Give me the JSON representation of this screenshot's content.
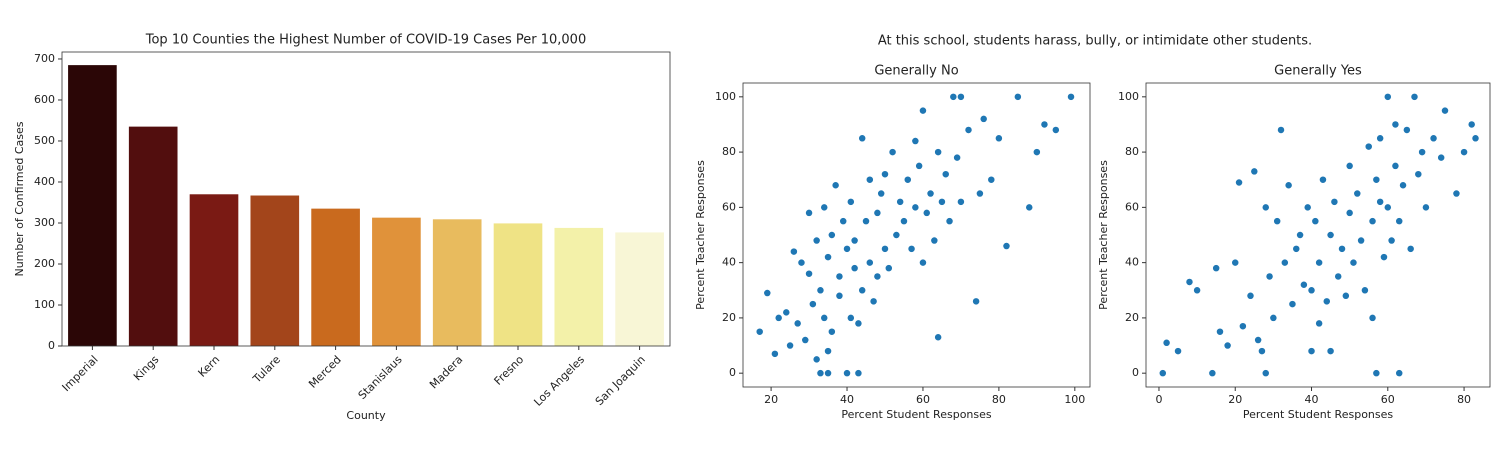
{
  "title": "At this school, students harass, bully, or intimidate other students.",
  "chart_data": [
    {
      "type": "bar",
      "title": "Top 10 Counties the Highest Number of COVID-19 Cases Per 10,000",
      "x_label": "County",
      "y_label": "Number of Confirmed Cases",
      "categories": [
        "Imperial",
        "Kings",
        "Kern",
        "Tulare",
        "Merced",
        "Stanislaus",
        "Madera",
        "Fresno",
        "Los Angeles",
        "San Joaquin"
      ],
      "values": [
        685,
        535,
        370,
        367,
        335,
        313,
        309,
        299,
        288,
        277
      ],
      "colors": [
        "#2b0606",
        "#520e0e",
        "#7a1a14",
        "#a3451b",
        "#c96a1e",
        "#e0923a",
        "#e8bb5e",
        "#efe385",
        "#f3f1a9",
        "#f8f6d6"
      ],
      "ylim": [
        0,
        717
      ],
      "yticks": [
        0,
        100,
        200,
        300,
        400,
        500,
        600,
        700
      ]
    },
    {
      "type": "scatter",
      "title": "Generally No",
      "x_label": "Percent Student Responses",
      "y_label": "Percent Teacher Responses",
      "color": "#1f77b4",
      "x": [
        17,
        19,
        21,
        22,
        24,
        25,
        26,
        27,
        28,
        29,
        30,
        30,
        31,
        32,
        32,
        33,
        33,
        34,
        34,
        35,
        35,
        36,
        36,
        37,
        38,
        38,
        39,
        40,
        40,
        41,
        41,
        42,
        42,
        43,
        44,
        44,
        45,
        46,
        46,
        47,
        48,
        48,
        49,
        50,
        50,
        51,
        52,
        53,
        54,
        55,
        56,
        57,
        58,
        58,
        59,
        60,
        60,
        61,
        62,
        63,
        64,
        65,
        66,
        67,
        68,
        69,
        70,
        72,
        74,
        75,
        76,
        78,
        80,
        82,
        85,
        88,
        90,
        92,
        95,
        99,
        33,
        35,
        43,
        64,
        70
      ],
      "values": [
        15,
        29,
        7,
        20,
        22,
        10,
        44,
        18,
        40,
        12,
        36,
        58,
        25,
        5,
        48,
        0,
        30,
        20,
        60,
        8,
        42,
        15,
        50,
        68,
        28,
        35,
        55,
        0,
        45,
        62,
        20,
        38,
        48,
        18,
        85,
        30,
        55,
        70,
        40,
        26,
        35,
        58,
        65,
        45,
        72,
        38,
        80,
        50,
        62,
        55,
        70,
        45,
        84,
        60,
        75,
        40,
        95,
        58,
        65,
        48,
        80,
        62,
        72,
        55,
        100,
        78,
        62,
        88,
        26,
        65,
        92,
        70,
        85,
        46,
        100,
        60,
        80,
        90,
        88,
        100,
        0,
        0,
        0,
        13,
        100
      ],
      "xlim": [
        12.6,
        104
      ],
      "ylim": [
        -5,
        105
      ],
      "xticks": [
        20,
        40,
        60,
        80,
        100
      ],
      "yticks": [
        0,
        20,
        40,
        60,
        80,
        100
      ]
    },
    {
      "type": "scatter",
      "title": "Generally Yes",
      "x_label": "Percent Student Responses",
      "y_label": "Percent Teacher Responses",
      "color": "#1f77b4",
      "x": [
        1,
        2,
        5,
        8,
        10,
        14,
        15,
        16,
        18,
        20,
        21,
        22,
        24,
        25,
        26,
        27,
        28,
        28,
        29,
        30,
        31,
        32,
        33,
        34,
        35,
        36,
        37,
        38,
        39,
        40,
        40,
        41,
        42,
        42,
        43,
        44,
        45,
        46,
        47,
        48,
        49,
        50,
        50,
        51,
        52,
        53,
        54,
        55,
        56,
        56,
        57,
        58,
        58,
        59,
        60,
        60,
        61,
        62,
        62,
        63,
        64,
        65,
        66,
        67,
        68,
        69,
        70,
        72,
        74,
        75,
        78,
        80,
        82,
        83,
        45,
        57,
        63
      ],
      "values": [
        0,
        11,
        8,
        33,
        30,
        0,
        38,
        15,
        10,
        40,
        69,
        17,
        28,
        73,
        12,
        8,
        0,
        60,
        35,
        20,
        55,
        88,
        40,
        68,
        25,
        45,
        50,
        32,
        60,
        8,
        30,
        55,
        18,
        40,
        70,
        26,
        50,
        62,
        35,
        45,
        28,
        58,
        75,
        40,
        65,
        48,
        30,
        82,
        55,
        20,
        70,
        62,
        85,
        42,
        100,
        60,
        48,
        75,
        90,
        55,
        68,
        88,
        45,
        100,
        72,
        80,
        60,
        85,
        78,
        95,
        65,
        80,
        90,
        85,
        8,
        0,
        0
      ],
      "xlim": [
        -3.4,
        86.8
      ],
      "ylim": [
        -5,
        105
      ],
      "xticks": [
        0,
        20,
        40,
        60,
        80
      ],
      "yticks": [
        0,
        20,
        40,
        60,
        80,
        100
      ]
    }
  ]
}
